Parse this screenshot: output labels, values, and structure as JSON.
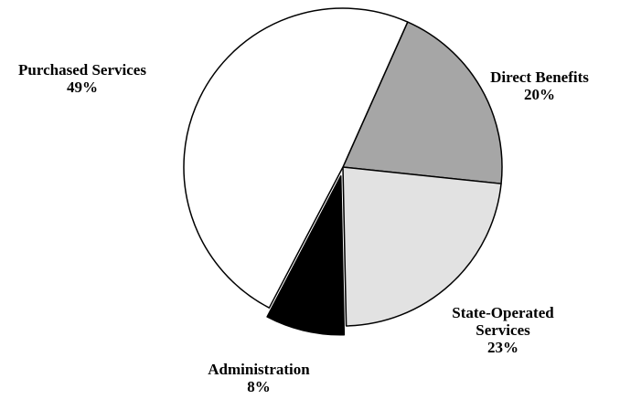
{
  "chart_data": {
    "type": "pie",
    "slices": [
      {
        "label": "Direct Benefits",
        "label_lines": [
          "Direct Benefits"
        ],
        "value_label": "20%",
        "value": 20,
        "color": "#a6a6a6",
        "exploded": false
      },
      {
        "label": "State-Operated Services",
        "label_lines": [
          "State-Operated",
          "Services"
        ],
        "value_label": "23%",
        "value": 23,
        "color": "#e2e2e2",
        "exploded": false
      },
      {
        "label": "Administration",
        "label_lines": [
          "Administration"
        ],
        "value_label": "8%",
        "value": 8,
        "color": "#000000",
        "exploded": true
      },
      {
        "label": "Purchased Services",
        "label_lines": [
          "Purchased Services"
        ],
        "value_label": "49%",
        "value": 49,
        "color": "#ffffff",
        "exploded": false
      }
    ],
    "legend": "none"
  }
}
